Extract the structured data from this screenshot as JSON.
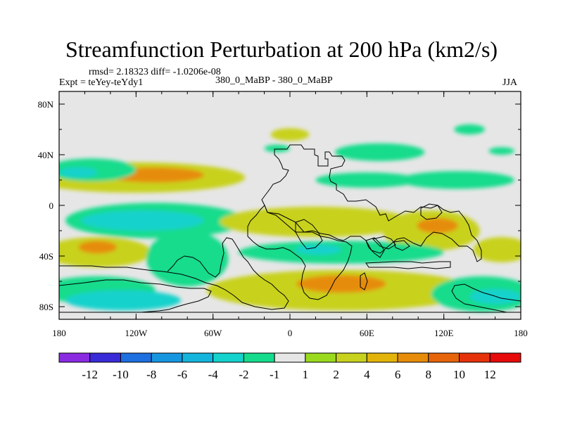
{
  "header": {
    "title": "Streamfunction Perturbation at 200 hPa (km2/s)",
    "rmsd_line": "rmsd= 2.18323 diff= -1.0206e-08",
    "expt": "Expt = teYey-teYdy1",
    "case": "380_0_MaBP - 380_0_MaBP",
    "season": "JJA"
  },
  "chart_data": {
    "type": "heatmap",
    "title": "Streamfunction Perturbation at 200 hPa (km2/s)",
    "subtitle": "380_0_MaBP - 380_0_MaBP",
    "xlabel": "",
    "ylabel": "",
    "xlim": [
      -180,
      180
    ],
    "ylim": [
      -90,
      90
    ],
    "x_ticks": [
      {
        "value": -180,
        "label": "180"
      },
      {
        "value": -120,
        "label": "120W"
      },
      {
        "value": -60,
        "label": "60W"
      },
      {
        "value": 0,
        "label": "0"
      },
      {
        "value": 60,
        "label": "60E"
      },
      {
        "value": 120,
        "label": "120E"
      },
      {
        "value": 180,
        "label": "180"
      }
    ],
    "y_ticks": [
      {
        "value": 80,
        "label": "80N"
      },
      {
        "value": 40,
        "label": "40N"
      },
      {
        "value": 0,
        "label": "0"
      },
      {
        "value": -40,
        "label": "40S"
      },
      {
        "value": -80,
        "label": "80S"
      }
    ],
    "colorbar": {
      "levels": [
        "-12",
        "-10",
        "-8",
        "-6",
        "-4",
        "-2",
        "-1",
        "1",
        "2",
        "4",
        "6",
        "8",
        "10",
        "12"
      ],
      "colors": [
        "#8a2be2",
        "#3a2bd8",
        "#1e6fe0",
        "#1796e0",
        "#14b4dc",
        "#14d2cc",
        "#14dc8c",
        "#e6e6e6",
        "#9ada1e",
        "#c8d21e",
        "#e2b40a",
        "#e68c0a",
        "#e6640a",
        "#e6320a",
        "#e60a0a"
      ]
    },
    "field_blobs": [
      {
        "lon": -120,
        "lat": 22,
        "rlon": 85,
        "rlat": 12,
        "value": 3
      },
      {
        "lon": -105,
        "lat": 24,
        "rlon": 38,
        "rlat": 6,
        "value": 6
      },
      {
        "lon": -155,
        "lat": 28,
        "rlon": 35,
        "rlat": 9,
        "value": -2
      },
      {
        "lon": -165,
        "lat": 26,
        "rlon": 15,
        "rlat": 4,
        "value": -4
      },
      {
        "lon": -105,
        "lat": -12,
        "rlon": 70,
        "rlat": 14,
        "value": -2
      },
      {
        "lon": -115,
        "lat": -12,
        "rlon": 48,
        "rlat": 8,
        "value": -4
      },
      {
        "lon": -150,
        "lat": -37,
        "rlon": 42,
        "rlat": 12,
        "value": 3
      },
      {
        "lon": -150,
        "lat": -33,
        "rlon": 15,
        "rlat": 5,
        "value": 6
      },
      {
        "lon": -80,
        "lat": -42,
        "rlon": 32,
        "rlat": 22,
        "value": -2
      },
      {
        "lon": -150,
        "lat": -67,
        "rlon": 45,
        "rlat": 11,
        "value": -2
      },
      {
        "lon": -130,
        "lat": -75,
        "rlon": 45,
        "rlat": 8,
        "value": -4
      },
      {
        "lon": 20,
        "lat": -13,
        "rlon": 75,
        "rlat": 12,
        "value": 3
      },
      {
        "lon": 110,
        "lat": -20,
        "rlon": 38,
        "rlat": 16,
        "value": 3
      },
      {
        "lon": 115,
        "lat": -16,
        "rlon": 16,
        "rlat": 6,
        "value": 6
      },
      {
        "lon": 165,
        "lat": -35,
        "rlon": 22,
        "rlat": 10,
        "value": 3
      },
      {
        "lon": 40,
        "lat": -37,
        "rlon": 80,
        "rlat": 9,
        "value": -2
      },
      {
        "lon": 22,
        "lat": -35,
        "rlon": 18,
        "rlat": 4,
        "value": -4
      },
      {
        "lon": 40,
        "lat": -67,
        "rlon": 105,
        "rlat": 16,
        "value": 3
      },
      {
        "lon": 40,
        "lat": -62,
        "rlon": 35,
        "rlat": 7,
        "value": 6
      },
      {
        "lon": 150,
        "lat": -70,
        "rlon": 40,
        "rlat": 14,
        "value": -2
      },
      {
        "lon": 160,
        "lat": -72,
        "rlon": 20,
        "rlat": 6,
        "value": -4
      },
      {
        "lon": 60,
        "lat": 20,
        "rlon": 40,
        "rlat": 6,
        "value": -2
      },
      {
        "lon": 130,
        "lat": 20,
        "rlon": 45,
        "rlat": 7,
        "value": -2
      },
      {
        "lon": 70,
        "lat": 42,
        "rlon": 35,
        "rlat": 7,
        "value": -2
      },
      {
        "lon": 140,
        "lat": 60,
        "rlon": 12,
        "rlat": 4,
        "value": -2
      },
      {
        "lon": 165,
        "lat": 43,
        "rlon": 10,
        "rlat": 3,
        "value": -2
      },
      {
        "lon": 0,
        "lat": 56,
        "rlon": 15,
        "rlat": 5,
        "value": 2
      },
      {
        "lon": -10,
        "lat": 45,
        "rlon": 10,
        "rlat": 3,
        "value": -2
      }
    ]
  }
}
